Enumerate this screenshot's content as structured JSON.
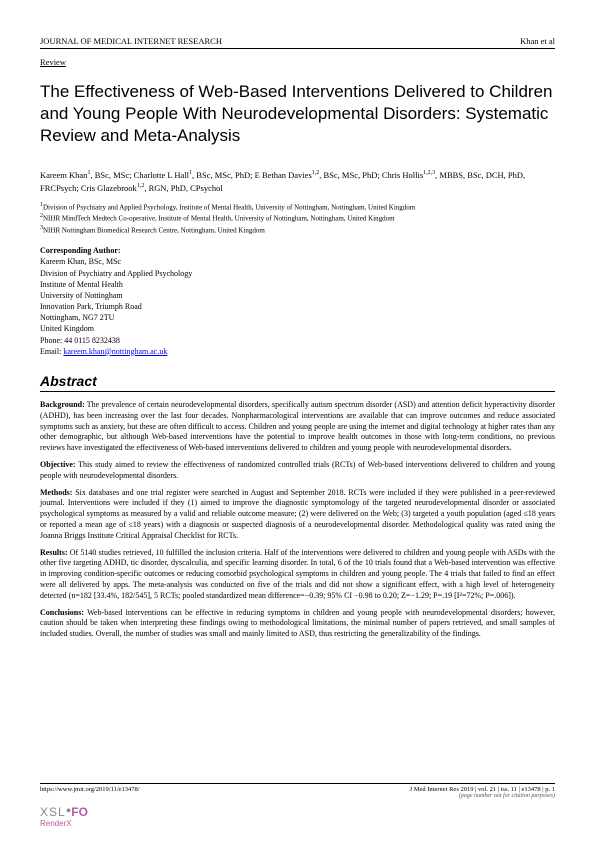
{
  "header": {
    "journal": "JOURNAL OF MEDICAL INTERNET RESEARCH",
    "author_short": "Khan et al"
  },
  "review_label": "Review",
  "title": "The Effectiveness of Web-Based Interventions Delivered to Children and Young People With Neurodevelopmental Disorders: Systematic Review and Meta-Analysis",
  "authors_html": "Kareem Khan<sup>1</sup>, BSc, MSc; Charlotte L Hall<sup>1</sup>, BSc, MSc, PhD; E Bethan Davies<sup>1,2</sup>, BSc, MSc, PhD; Chris Hollis<sup>1,2,3</sup>, MBBS, BSc, DCH, PhD, FRCPsych; Cris Glazebrook<sup>1,2</sup>, RGN, PhD, CPsychol",
  "affiliations": [
    "Division of Psychiatry and Applied Psychology, Institute of Mental Health, University of Nottingham, Nottingham, United Kingdom",
    "NIHR MindTech Medtech Co-operative, Institute of Mental Health, University of Nottingham, Nottingham, United Kingdom",
    "NIHR Nottingham Biomedical Research Centre, Nottingham, United Kingdom"
  ],
  "corresponding": {
    "label": "Corresponding Author:",
    "lines": [
      "Kareem Khan, BSc, MSc",
      "Division of Psychiatry and Applied Psychology",
      "Institute of Mental Health",
      "University of Nottingham",
      "Innovation Park, Triumph Road",
      "Nottingham, NG7 2TU",
      "United Kingdom",
      "Phone: 44 0115 8232438"
    ],
    "email_label": "Email: ",
    "email": "kareem.khan@nottingham.ac.uk"
  },
  "abstract_heading": "Abstract",
  "abstract": {
    "background": {
      "label": "Background:",
      "text": " The prevalence of certain neurodevelopmental disorders, specifically autism spectrum disorder (ASD) and attention deficit hyperactivity disorder (ADHD), has been increasing over the last four decades. Nonpharmacological interventions are available that can improve outcomes and reduce associated symptoms such as anxiety, but these are often difficult to access. Children and young people are using the internet and digital technology at higher rates than any other demographic, but although Web-based interventions have the potential to improve health outcomes in those with long-term conditions, no previous reviews have investigated the effectiveness of Web-based interventions delivered to children and young people with neurodevelopmental disorders."
    },
    "objective": {
      "label": "Objective:",
      "text": " This study aimed to review the effectiveness of randomized controlled trials (RCTs) of Web-based interventions delivered to children and young people with neurodevelopmental disorders."
    },
    "methods": {
      "label": "Methods:",
      "text": " Six databases and one trial register were searched in August and September 2018. RCTs were included if they were published in a peer-reviewed journal. Interventions were included if they (1) aimed to improve the diagnostic symptomology of the targeted neurodevelopmental disorder or associated psychological symptoms as measured by a valid and reliable outcome measure; (2) were delivered on the Web; (3) targeted a youth population (aged ≤18 years or reported a mean age of ≤18 years) with a diagnosis or suspected diagnosis of a neurodevelopmental disorder. Methodological quality was rated using the Joanna Briggs Institute Critical Appraisal Checklist for RCTs."
    },
    "results": {
      "label": "Results:",
      "text": " Of 5140 studies retrieved, 10 fulfilled the inclusion criteria. Half of the interventions were delivered to children and young people with ASDs with the other five targeting ADHD, tic disorder, dyscalculia, and specific learning disorder. In total, 6 of the 10 trials found that a Web-based intervention was effective in improving condition-specific outcomes or reducing comorbid psychological symptoms in children and young people. The 4 trials that failed to find an effect were all delivered by apps. The meta-analysis was conducted on five of the trials and did not show a significant effect, with a high level of heterogeneity detected (n=182 [33.4%, 182/545], 5 RCTs; pooled standardized mean difference=−0.39; 95% CI −0.98 to 0.20; Z=−1.29; P=.19 [I²=72%; P=.006])."
    },
    "conclusions": {
      "label": "Conclusions:",
      "text": " Web-based interventions can be effective in reducing symptoms in children and young people with neurodevelopmental disorders; however, caution should be taken when interpreting these findings owing to methodological limitations, the minimal number of papers retrieved, and small samples of included studies. Overall, the number of studies was small and mainly limited to ASD, thus restricting the generalizability of the findings."
    }
  },
  "footer": {
    "url": "https://www.jmir.org/2019/11/e13478/",
    "citation": "J Med Internet Res 2019 | vol. 21 | iss. 11 | e13478 | p. 1",
    "note": "(page number not for citation purposes)",
    "logo_xsl": "XSL",
    "logo_fo": "FO",
    "logo_renderx": "RenderX"
  }
}
